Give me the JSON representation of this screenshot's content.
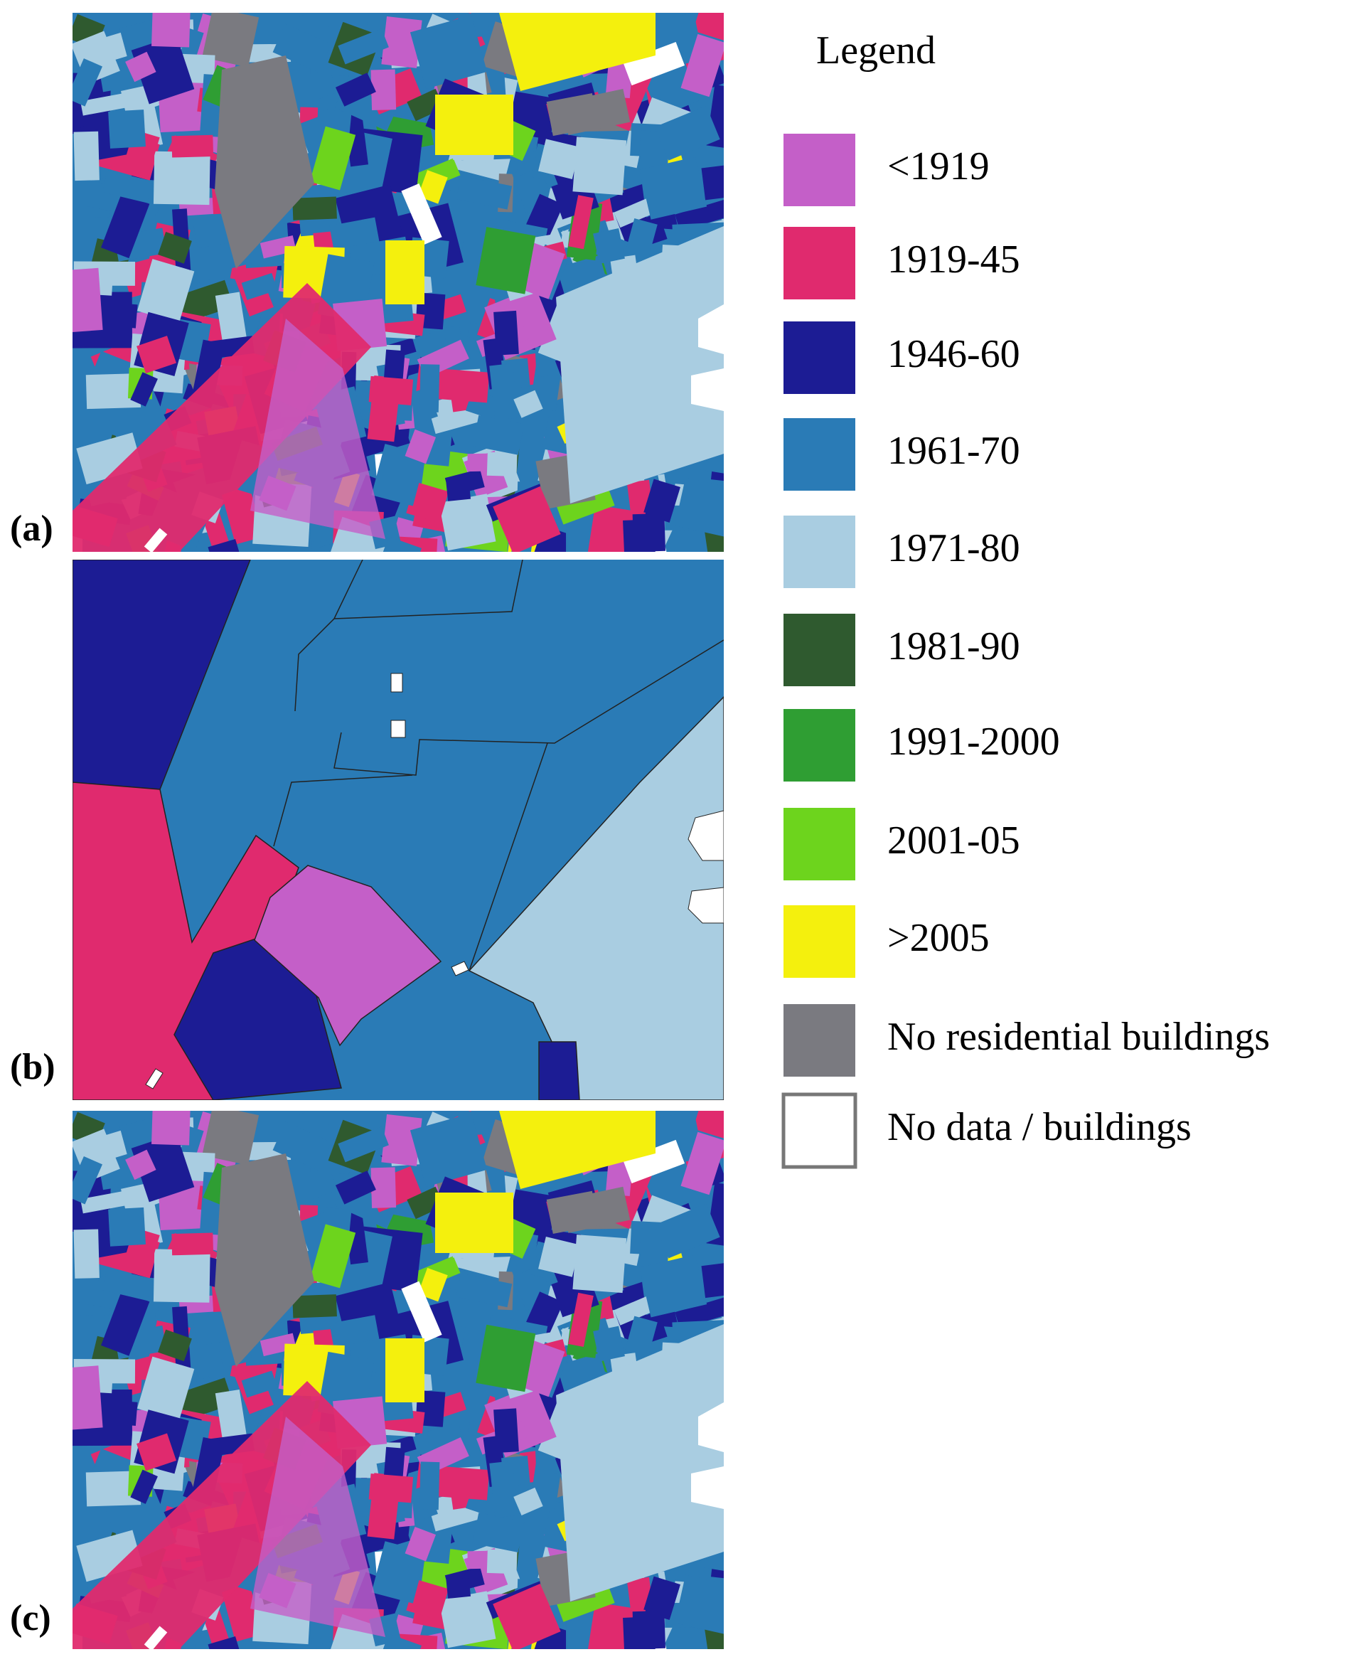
{
  "panels": [
    {
      "label": "(a)"
    },
    {
      "label": "(b)"
    },
    {
      "label": "(c)"
    }
  ],
  "legend": {
    "title": "Legend",
    "items": [
      {
        "label": "<1919",
        "color": "#c45fc8"
      },
      {
        "label": "1919-45",
        "color": "#e02a6e"
      },
      {
        "label": "1946-60",
        "color": "#1c1c94"
      },
      {
        "label": "1961-70",
        "color": "#2a7bb6"
      },
      {
        "label": "1971-80",
        "color": "#a9cde1"
      },
      {
        "label": "1981-90",
        "color": "#2f5a2f"
      },
      {
        "label": "1991-2000",
        "color": "#2f9e33"
      },
      {
        "label": "2001-05",
        "color": "#6dd41d"
      },
      {
        "label": ">2005",
        "color": "#f4f00d"
      },
      {
        "label": "No residential buildings",
        "color": "#7a7a80"
      },
      {
        "label": "No data / buildings",
        "color": "#ffffff"
      }
    ]
  }
}
